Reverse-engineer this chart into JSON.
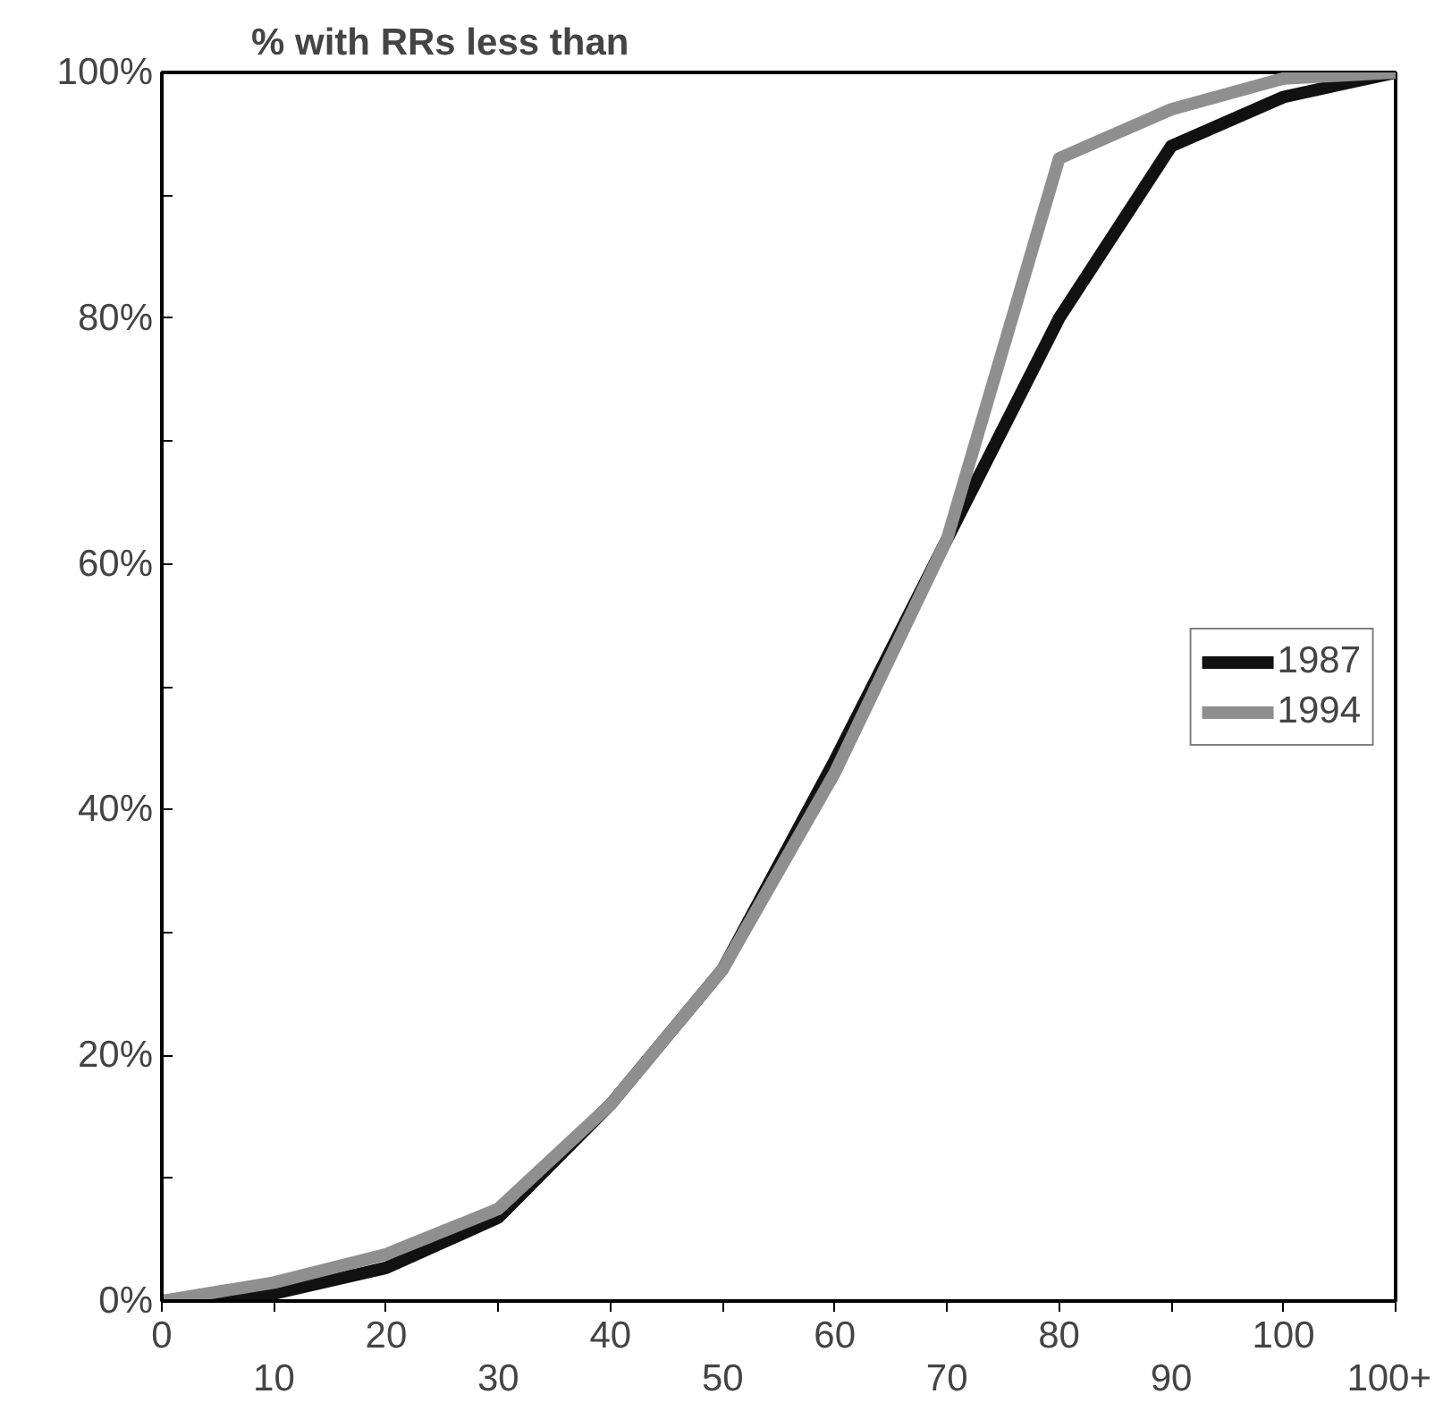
{
  "chart_data": {
    "type": "line",
    "title": "% with RRs less than",
    "categories": [
      "0",
      "10",
      "20",
      "30",
      "40",
      "50",
      "60",
      "70",
      "80",
      "90",
      "100",
      "100+"
    ],
    "series": [
      {
        "name": "1987",
        "color": "#111111",
        "values": [
          0,
          0.6,
          2.7,
          6.8,
          16,
          27,
          44,
          62,
          80,
          94,
          98,
          100
        ]
      },
      {
        "name": "1994",
        "color": "#8f8f8f",
        "values": [
          0,
          1.5,
          3.8,
          7.5,
          16,
          27,
          43,
          62,
          93,
          97,
          99.5,
          100
        ]
      }
    ],
    "ylim": [
      0,
      100
    ],
    "yticks": [
      {
        "value": 0,
        "label": "0%"
      },
      {
        "value": 10,
        "label": null
      },
      {
        "value": 20,
        "label": "20%"
      },
      {
        "value": 30,
        "label": null
      },
      {
        "value": 40,
        "label": "40%"
      },
      {
        "value": 50,
        "label": null
      },
      {
        "value": 60,
        "label": "60%"
      },
      {
        "value": 70,
        "label": null
      },
      {
        "value": 80,
        "label": "80%"
      },
      {
        "value": 90,
        "label": null
      },
      {
        "value": 100,
        "label": "100%"
      }
    ],
    "legend": "right",
    "grid": false,
    "marker": "none",
    "line_style": "solid"
  }
}
